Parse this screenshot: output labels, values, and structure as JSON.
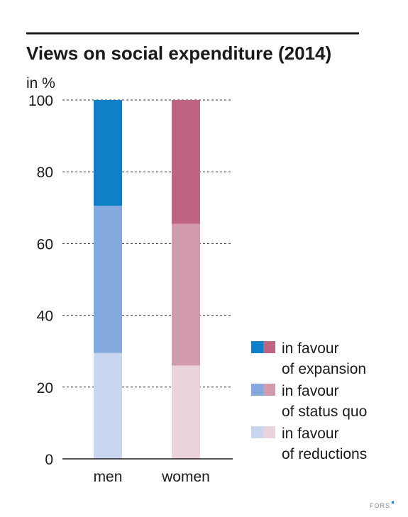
{
  "chart_data": {
    "type": "bar",
    "stacked": true,
    "title": "Views on social expenditure (2014)",
    "ylabel": "in %",
    "ylim": [
      0,
      100
    ],
    "yticks": [
      0,
      20,
      40,
      60,
      80,
      100
    ],
    "grid": true,
    "categories": [
      "men",
      "women"
    ],
    "series": [
      {
        "name": "in favour of reductions",
        "values": [
          29.5,
          26
        ],
        "colors": [
          "#c9d6f0",
          "#ead3dc"
        ]
      },
      {
        "name": "in favour of status quo",
        "values": [
          41,
          39.5
        ],
        "colors": [
          "#84a9dc",
          "#d29bad"
        ]
      },
      {
        "name": "in favour of expansion",
        "values": [
          29.5,
          34.5
        ],
        "colors": [
          "#0f7fc8",
          "#bf6582"
        ]
      }
    ],
    "legend": {
      "placement": "right",
      "entries": [
        {
          "line1": "in favour",
          "line2": "of expansion",
          "series": 2
        },
        {
          "line1": "in favour",
          "line2": "of status quo",
          "series": 1
        },
        {
          "line1": "in favour",
          "line2": "of reductions",
          "series": 0
        }
      ]
    }
  },
  "source_logo": "FORS"
}
